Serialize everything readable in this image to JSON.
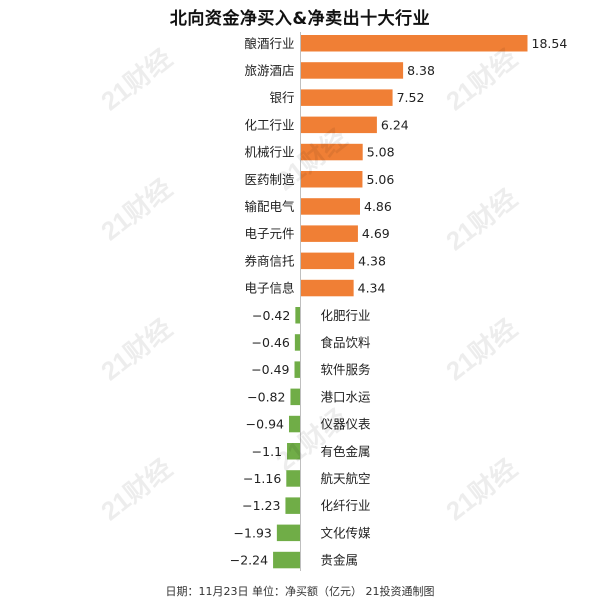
{
  "page": {
    "title": "北向资金净买入&净卖出十大行业",
    "footer": "日期：11月23日 单位：净买额（亿元） 21投资通制图",
    "watermark": "21财经"
  },
  "colors": {
    "positive": "#f07f35",
    "negative": "#70ad47",
    "axis": "#bfbfbf"
  },
  "chart_data": {
    "type": "bar",
    "orientation": "horizontal",
    "categories": [
      "酿酒行业",
      "旅游酒店",
      "银行",
      "化工行业",
      "机械行业",
      "医药制造",
      "输配电气",
      "电子元件",
      "券商信托",
      "电子信息",
      "化肥行业",
      "食品饮料",
      "软件服务",
      "港口水运",
      "仪器仪表",
      "有色金属",
      "航天航空",
      "化纤行业",
      "文化传媒",
      "贵金属"
    ],
    "values": [
      18.54,
      8.38,
      7.52,
      6.24,
      5.08,
      5.06,
      4.86,
      4.69,
      4.38,
      4.34,
      -0.42,
      -0.46,
      -0.49,
      -0.82,
      -0.94,
      -1.1,
      -1.16,
      -1.23,
      -1.93,
      -2.24
    ],
    "value_labels": [
      "18.54",
      "8.38",
      "7.52",
      "6.24",
      "5.08",
      "5.06",
      "4.86",
      "4.69",
      "4.38",
      "4.34",
      "−0.42",
      "−0.46",
      "−0.49",
      "−0.82",
      "−0.94",
      "−1.1",
      "−1.16",
      "−1.23",
      "−1.93",
      "−2.24"
    ],
    "xlim": [
      -2.24,
      18.54
    ],
    "grid": false,
    "legend": "none"
  }
}
